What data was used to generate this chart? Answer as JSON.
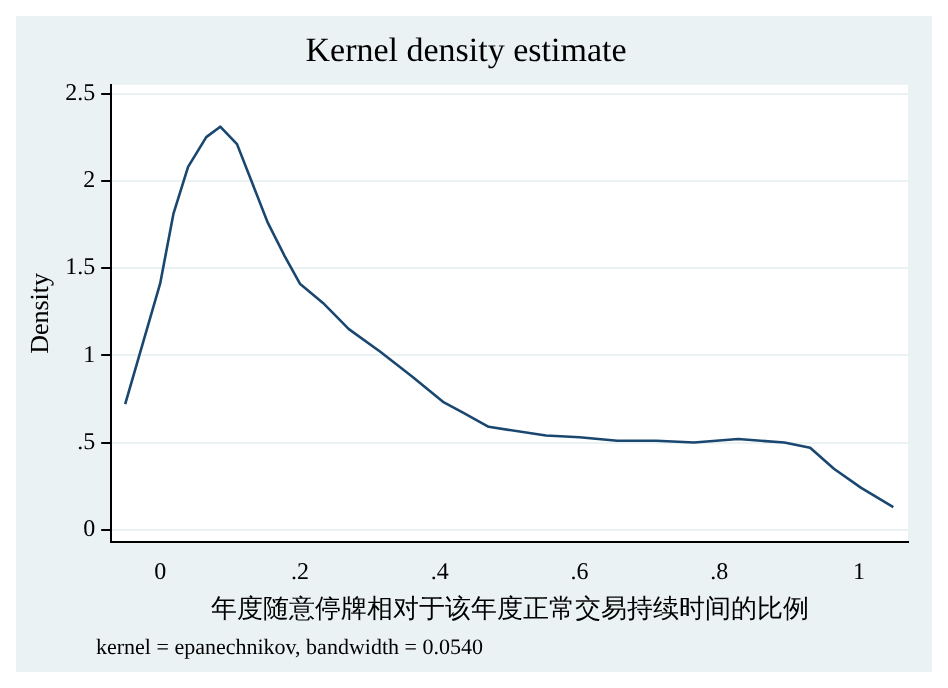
{
  "chart_data": {
    "type": "line",
    "title": "Kernel density estimate",
    "xlabel": "年度随意停牌相对于该年度正常交易持续时间的比例",
    "ylabel": "Density",
    "annotations": [
      "kernel = epanechnikov, bandwidth = 0.0540"
    ],
    "series": [
      {
        "color": "#1a476f",
        "x": [
          -0.05,
          0,
          0.019,
          0.04,
          0.066,
          0.086,
          0.11,
          0.154,
          0.178,
          0.2,
          0.233,
          0.27,
          0.315,
          0.36,
          0.406,
          0.434,
          0.47,
          0.552,
          0.6,
          0.654,
          0.71,
          0.764,
          0.827,
          0.893,
          0.93,
          0.964,
          1.003,
          1.049
        ],
        "values": [
          0.72,
          1.41,
          1.81,
          2.08,
          2.25,
          2.31,
          2.21,
          1.76,
          1.57,
          1.41,
          1.3,
          1.15,
          1.02,
          0.88,
          0.73,
          0.67,
          0.59,
          0.54,
          0.53,
          0.51,
          0.51,
          0.5,
          0.52,
          0.5,
          0.47,
          0.35,
          0.24,
          0.13
        ]
      }
    ],
    "xlim": [
      -0.07,
      1.07
    ],
    "ylim": [
      -0.07,
      2.55
    ],
    "xticks": [
      0,
      {
        "value": 0.2,
        "label": ".2"
      },
      {
        "value": 0.4,
        "label": ".4"
      },
      {
        "value": 0.6,
        "label": ".6"
      },
      {
        "value": 0.8,
        "label": ".8"
      },
      1
    ],
    "yticks": [
      0,
      {
        "value": 0.5,
        "label": ".5"
      },
      1,
      1.5,
      2,
      2.5
    ],
    "grid": "y",
    "legend": false,
    "marker": "none",
    "line_style": "solid"
  }
}
